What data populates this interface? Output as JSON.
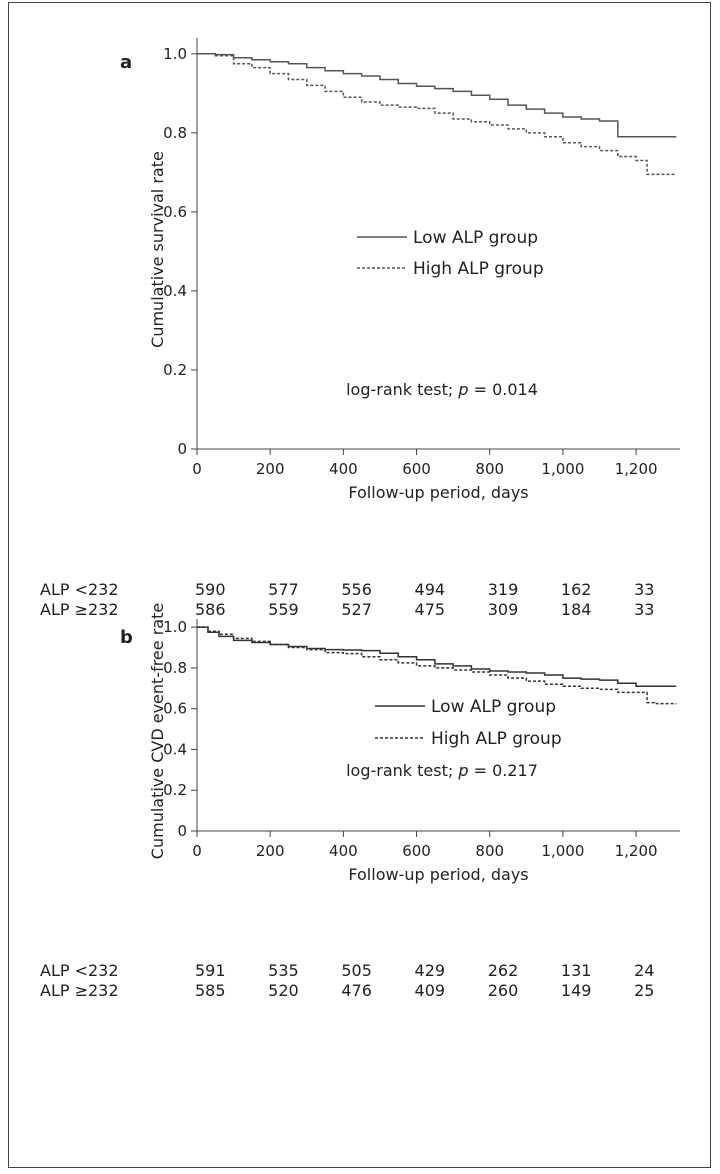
{
  "chart_data": [
    {
      "panel_label": "a",
      "type": "line",
      "ylabel": "Cumulative survival rate",
      "xlabel": "Follow-up period, days",
      "xlim": [
        0,
        1320
      ],
      "ylim": [
        0,
        1.04
      ],
      "xticks": [
        0,
        200,
        400,
        600,
        800,
        1000,
        1200
      ],
      "xtick_labels": [
        "0",
        "200",
        "400",
        "600",
        "800",
        "1,000",
        "1,200"
      ],
      "yticks": [
        0,
        0.2,
        0.4,
        0.6,
        0.8,
        1.0
      ],
      "ytick_labels": [
        "0",
        "0.2",
        "0.4",
        "0.6",
        "0.8",
        "1.0"
      ],
      "annotation": "log-rank test; p = 0.014",
      "annotation_parts": {
        "pre": "log-rank test; ",
        "p": "p",
        "post": " = 0.014"
      },
      "legend_position": "center",
      "series": [
        {
          "name": "Low ALP group",
          "style": "solid",
          "color": "#555555",
          "x": [
            0,
            50,
            100,
            150,
            200,
            250,
            300,
            350,
            400,
            450,
            500,
            550,
            600,
            650,
            700,
            750,
            800,
            850,
            900,
            950,
            1000,
            1050,
            1100,
            1150,
            1200,
            1250,
            1310
          ],
          "y": [
            1.0,
            0.998,
            0.99,
            0.985,
            0.98,
            0.975,
            0.965,
            0.957,
            0.95,
            0.944,
            0.935,
            0.925,
            0.918,
            0.912,
            0.905,
            0.895,
            0.885,
            0.87,
            0.86,
            0.85,
            0.84,
            0.835,
            0.83,
            0.79,
            0.79,
            0.79,
            0.79
          ]
        },
        {
          "name": "High ALP group",
          "style": "dashed",
          "color": "#555555",
          "x": [
            0,
            50,
            100,
            150,
            200,
            250,
            300,
            350,
            400,
            450,
            500,
            550,
            600,
            650,
            700,
            750,
            800,
            850,
            900,
            950,
            1000,
            1050,
            1100,
            1150,
            1200,
            1230,
            1250,
            1310
          ],
          "y": [
            1.0,
            0.995,
            0.975,
            0.965,
            0.95,
            0.935,
            0.92,
            0.905,
            0.89,
            0.878,
            0.87,
            0.865,
            0.862,
            0.85,
            0.835,
            0.828,
            0.82,
            0.81,
            0.8,
            0.79,
            0.775,
            0.765,
            0.755,
            0.74,
            0.73,
            0.695,
            0.695,
            0.695
          ]
        }
      ],
      "risk_table": {
        "rows": [
          {
            "label": "ALP <232",
            "values": [
              "590",
              "577",
              "556",
              "494",
              "319",
              "162",
              "33"
            ]
          },
          {
            "label": "ALP ≥232",
            "values": [
              "586",
              "559",
              "527",
              "475",
              "309",
              "184",
              "33"
            ]
          }
        ]
      }
    },
    {
      "panel_label": "b",
      "type": "line",
      "ylabel": "Cumulative CVD event-free rate",
      "xlabel": "Follow-up period, days",
      "xlim": [
        0,
        1320
      ],
      "ylim": [
        0,
        1.04
      ],
      "xticks": [
        0,
        200,
        400,
        600,
        800,
        1000,
        1200
      ],
      "xtick_labels": [
        "0",
        "200",
        "400",
        "600",
        "800",
        "1,000",
        "1,200"
      ],
      "yticks": [
        0,
        0.2,
        0.4,
        0.6,
        0.8,
        1.0
      ],
      "ytick_labels": [
        "0",
        "0.2",
        "0.4",
        "0.6",
        "0.8",
        "1.0"
      ],
      "annotation": "log-rank test; p = 0.217",
      "annotation_parts": {
        "pre": "log-rank test; ",
        "p": "p",
        "post": " = 0.217"
      },
      "legend_position": "center-right",
      "series": [
        {
          "name": "Low ALP group",
          "style": "solid",
          "color": "#333333",
          "x": [
            0,
            30,
            60,
            100,
            150,
            200,
            250,
            300,
            350,
            400,
            450,
            500,
            550,
            600,
            650,
            700,
            750,
            800,
            850,
            900,
            950,
            1000,
            1050,
            1100,
            1150,
            1200,
            1250,
            1310
          ],
          "y": [
            1.0,
            0.975,
            0.955,
            0.935,
            0.925,
            0.915,
            0.905,
            0.895,
            0.89,
            0.888,
            0.885,
            0.872,
            0.855,
            0.84,
            0.82,
            0.81,
            0.795,
            0.785,
            0.78,
            0.775,
            0.765,
            0.75,
            0.745,
            0.74,
            0.725,
            0.71,
            0.71,
            0.71
          ]
        },
        {
          "name": "High ALP group",
          "style": "dashed",
          "color": "#333333",
          "x": [
            0,
            30,
            60,
            100,
            150,
            200,
            250,
            300,
            350,
            400,
            450,
            500,
            550,
            600,
            650,
            700,
            750,
            800,
            850,
            900,
            950,
            1000,
            1050,
            1100,
            1150,
            1200,
            1230,
            1250,
            1310
          ],
          "y": [
            1.0,
            0.98,
            0.965,
            0.945,
            0.93,
            0.915,
            0.9,
            0.89,
            0.875,
            0.87,
            0.855,
            0.84,
            0.825,
            0.81,
            0.8,
            0.79,
            0.78,
            0.765,
            0.75,
            0.735,
            0.72,
            0.71,
            0.7,
            0.695,
            0.68,
            0.68,
            0.63,
            0.625,
            0.625
          ]
        }
      ],
      "risk_table": {
        "rows": [
          {
            "label": "ALP <232",
            "values": [
              "591",
              "535",
              "505",
              "429",
              "262",
              "131",
              "24"
            ]
          },
          {
            "label": "ALP ≥232",
            "values": [
              "585",
              "520",
              "476",
              "409",
              "260",
              "149",
              "25"
            ]
          }
        ]
      }
    }
  ]
}
